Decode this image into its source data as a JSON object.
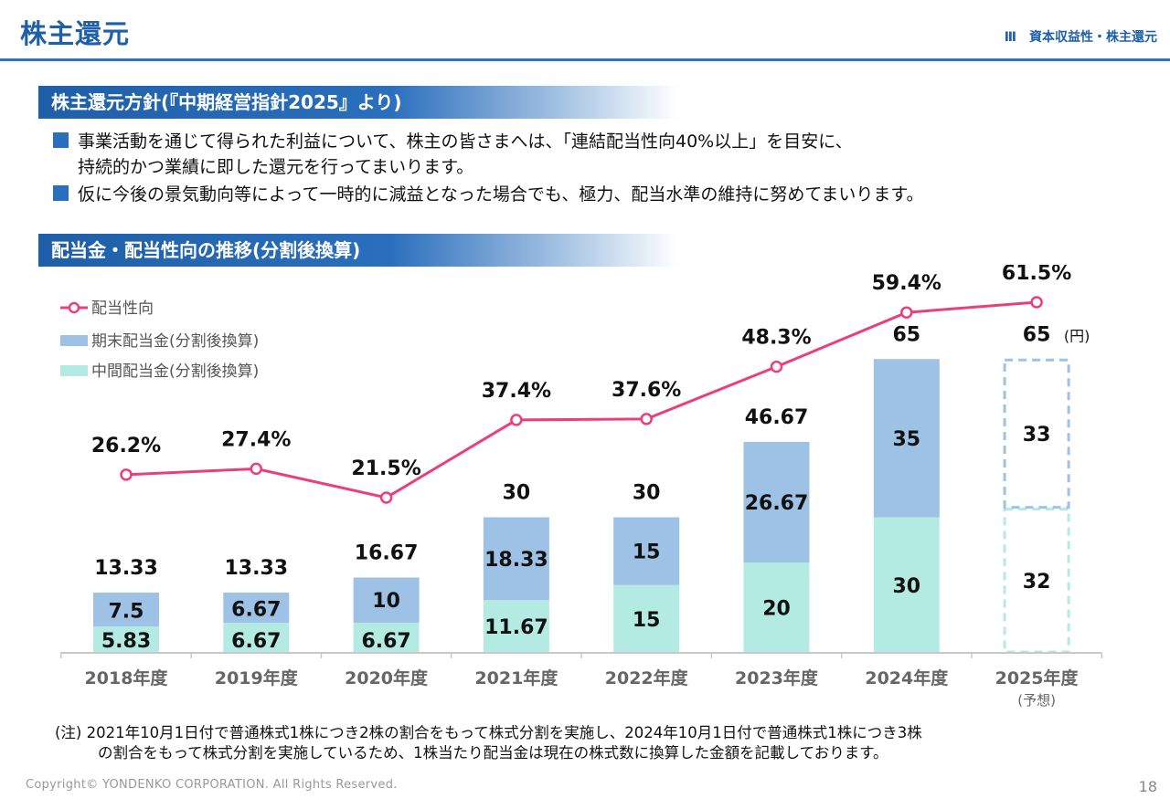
{
  "header": {
    "title": "株主還元",
    "section": "Ⅲ　資本収益性・株主還元"
  },
  "policy": {
    "heading": "株主還元方針(『中期経営指針2025』より)",
    "bullet1_line1": "事業活動を通じて得られた利益について、株主の皆さまへは、「連結配当性向40%以上」を目安に、",
    "bullet1_line2": "持続的かつ業績に即した還元を行ってまいります。",
    "bullet2": "仮に今後の景気動向等によって一時的に減益となった場合でも、極力、配当水準の維持に努めてまいります。"
  },
  "chart_section": {
    "heading": "配当金・配当性向の推移(分割後換算)"
  },
  "chart_data": {
    "type": "bar",
    "stacked": true,
    "categories": [
      "2018年度",
      "2019年度",
      "2020年度",
      "2021年度",
      "2022年度",
      "2023年度",
      "2024年度",
      "2025年度"
    ],
    "forecast_note": "(予想)",
    "unit_label": "(円)",
    "series": [
      {
        "name": "中間配当金(分割後換算)",
        "values": [
          5.83,
          6.67,
          6.67,
          11.67,
          15,
          20,
          30,
          32
        ],
        "labels": [
          "5.83",
          "6.67",
          "6.67",
          "11.67",
          "15",
          "20",
          "30",
          "32"
        ],
        "color": "#b3ebe3"
      },
      {
        "name": "期末配当金(分割後換算)",
        "values": [
          7.5,
          6.67,
          10,
          18.33,
          15,
          26.67,
          35,
          33
        ],
        "labels": [
          "7.5",
          "6.67",
          "10",
          "18.33",
          "15",
          "26.67",
          "35",
          "33"
        ],
        "color": "#9dc2e6"
      }
    ],
    "totals": [
      "13.33",
      "13.33",
      "16.67",
      "30",
      "30",
      "46.67",
      "65",
      "65"
    ],
    "payout_ratio": {
      "name": "配当性向",
      "values": [
        26.2,
        27.4,
        21.5,
        37.4,
        37.6,
        48.3,
        59.4,
        61.5
      ],
      "labels": [
        "26.2%",
        "27.4%",
        "21.5%",
        "37.4%",
        "37.6%",
        "48.3%",
        "59.4%",
        "61.5%"
      ],
      "color": "#ea3f7a"
    },
    "forecast_index": 7,
    "legend_position": "top-left",
    "grid": false
  },
  "note": {
    "line1": "(注) 2021年10月1日付で普通株式1株につき2株の割合をもって株式分割を実施し、2024年10月1日付で普通株式1株につき3株",
    "line2": "の割合をもって株式分割を実施しているため、1株当たり配当金は現在の株式数に換算した金額を記載しております。"
  },
  "footer": {
    "copyright": "Copyright© YONDENKO CORPORATION. All Rights Reserved.",
    "page_number": "18"
  }
}
